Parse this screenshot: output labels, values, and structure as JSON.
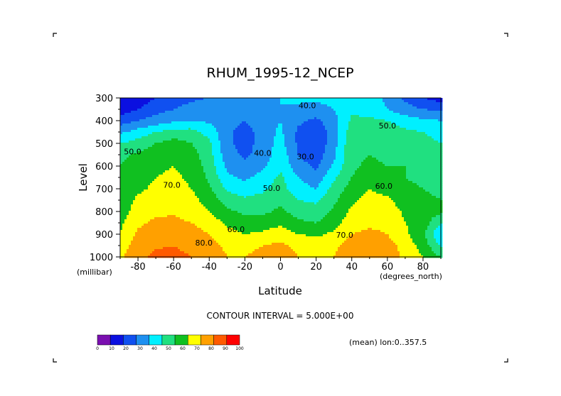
{
  "chart_data": {
    "type": "contour",
    "title": "RHUM_1995-12_NCEP",
    "xlabel": "Latitude",
    "ylabel": "Level",
    "x_unit": "(degrees_north)",
    "y_unit": "(millibar)",
    "xlim": [
      -90,
      90
    ],
    "ylim": [
      1000,
      300
    ],
    "x_ticks": [
      "-80",
      "-60",
      "-40",
      "-20",
      "0",
      "20",
      "40",
      "60",
      "80"
    ],
    "y_ticks": [
      "300",
      "400",
      "500",
      "600",
      "700",
      "800",
      "900",
      "1000"
    ],
    "contour_interval": "CONTOUR INTERVAL = 5.000E+00",
    "footnote": "(mean) lon:0..357.5",
    "levels": [
      0,
      10,
      20,
      30,
      40,
      50,
      60,
      70,
      80,
      90,
      100
    ],
    "colorbar_labels": [
      "0",
      "10",
      "20",
      "30",
      "40",
      "50",
      "60",
      "70",
      "80",
      "90",
      "100"
    ],
    "colors": [
      "#7a0fb0",
      "#0b10e0",
      "#1050f0",
      "#1e90f0",
      "#00f0ff",
      "#20e080",
      "#10c020",
      "#ffff00",
      "#ffa000",
      "#ff5a00",
      "#ff0000"
    ],
    "contour_labels": [
      {
        "text": "40.0",
        "lat": 15,
        "p": 345
      },
      {
        "text": "50.0",
        "lat": 60,
        "p": 435
      },
      {
        "text": "50.0",
        "lat": -83,
        "p": 548
      },
      {
        "text": "40.0",
        "lat": -10,
        "p": 555
      },
      {
        "text": "30.0",
        "lat": 14,
        "p": 570
      },
      {
        "text": "70.0",
        "lat": -61,
        "p": 695
      },
      {
        "text": "50.0",
        "lat": -5,
        "p": 710
      },
      {
        "text": "60.0",
        "lat": 58,
        "p": 700
      },
      {
        "text": "60.0",
        "lat": -25,
        "p": 890
      },
      {
        "text": "70.0",
        "lat": 36,
        "p": 915
      },
      {
        "text": "80.0",
        "lat": -43,
        "p": 950
      }
    ],
    "field": {
      "lats": [
        -90,
        -80,
        -70,
        -60,
        -50,
        -40,
        -30,
        -20,
        -10,
        0,
        10,
        20,
        30,
        40,
        50,
        60,
        70,
        80,
        90
      ],
      "levels_mb": [
        300,
        350,
        400,
        450,
        500,
        550,
        600,
        650,
        700,
        750,
        800,
        850,
        900,
        950,
        1000
      ],
      "values": [
        [
          10,
          14,
          20,
          24,
          28,
          30,
          32,
          36,
          38,
          40,
          42,
          42,
          44,
          46,
          44,
          38,
          28,
          20,
          15
        ],
        [
          15,
          20,
          26,
          30,
          34,
          36,
          36,
          35,
          38,
          40,
          38,
          36,
          40,
          48,
          46,
          40,
          34,
          30,
          28
        ],
        [
          25,
          30,
          34,
          38,
          40,
          38,
          34,
          30,
          36,
          40,
          32,
          28,
          36,
          52,
          52,
          50,
          45,
          42,
          40
        ],
        [
          38,
          44,
          50,
          54,
          54,
          46,
          32,
          26,
          34,
          42,
          28,
          24,
          34,
          56,
          56,
          56,
          52,
          50,
          46
        ],
        [
          50,
          54,
          60,
          64,
          60,
          52,
          32,
          26,
          34,
          44,
          28,
          22,
          36,
          58,
          58,
          58,
          56,
          54,
          50
        ],
        [
          58,
          62,
          66,
          68,
          64,
          54,
          34,
          28,
          34,
          46,
          30,
          24,
          38,
          58,
          60,
          58,
          58,
          56,
          52
        ],
        [
          60,
          64,
          68,
          70,
          66,
          56,
          38,
          32,
          38,
          48,
          34,
          28,
          42,
          58,
          62,
          60,
          60,
          58,
          54
        ],
        [
          62,
          66,
          70,
          72,
          68,
          58,
          42,
          38,
          44,
          52,
          40,
          34,
          48,
          60,
          66,
          62,
          60,
          58,
          56
        ],
        [
          62,
          68,
          72,
          74,
          70,
          62,
          48,
          44,
          48,
          54,
          44,
          40,
          54,
          64,
          70,
          66,
          62,
          60,
          58
        ],
        [
          64,
          72,
          76,
          77,
          73,
          66,
          56,
          52,
          54,
          58,
          50,
          48,
          58,
          68,
          74,
          72,
          64,
          62,
          60
        ],
        [
          66,
          74,
          78,
          79,
          76,
          70,
          62,
          58,
          58,
          62,
          56,
          54,
          62,
          72,
          76,
          76,
          68,
          66,
          62
        ],
        [
          68,
          78,
          82,
          82,
          80,
          76,
          68,
          64,
          64,
          68,
          62,
          60,
          66,
          76,
          78,
          78,
          70,
          66,
          50
        ],
        [
          70,
          82,
          85,
          86,
          84,
          80,
          74,
          70,
          72,
          76,
          70,
          68,
          72,
          80,
          82,
          80,
          72,
          62,
          40
        ],
        [
          74,
          86,
          89,
          90,
          88,
          84,
          78,
          78,
          80,
          82,
          78,
          76,
          78,
          84,
          86,
          84,
          76,
          66,
          48
        ],
        [
          78,
          88,
          92,
          92,
          90,
          86,
          80,
          80,
          82,
          84,
          80,
          78,
          80,
          86,
          88,
          86,
          78,
          70,
          60
        ]
      ]
    }
  }
}
